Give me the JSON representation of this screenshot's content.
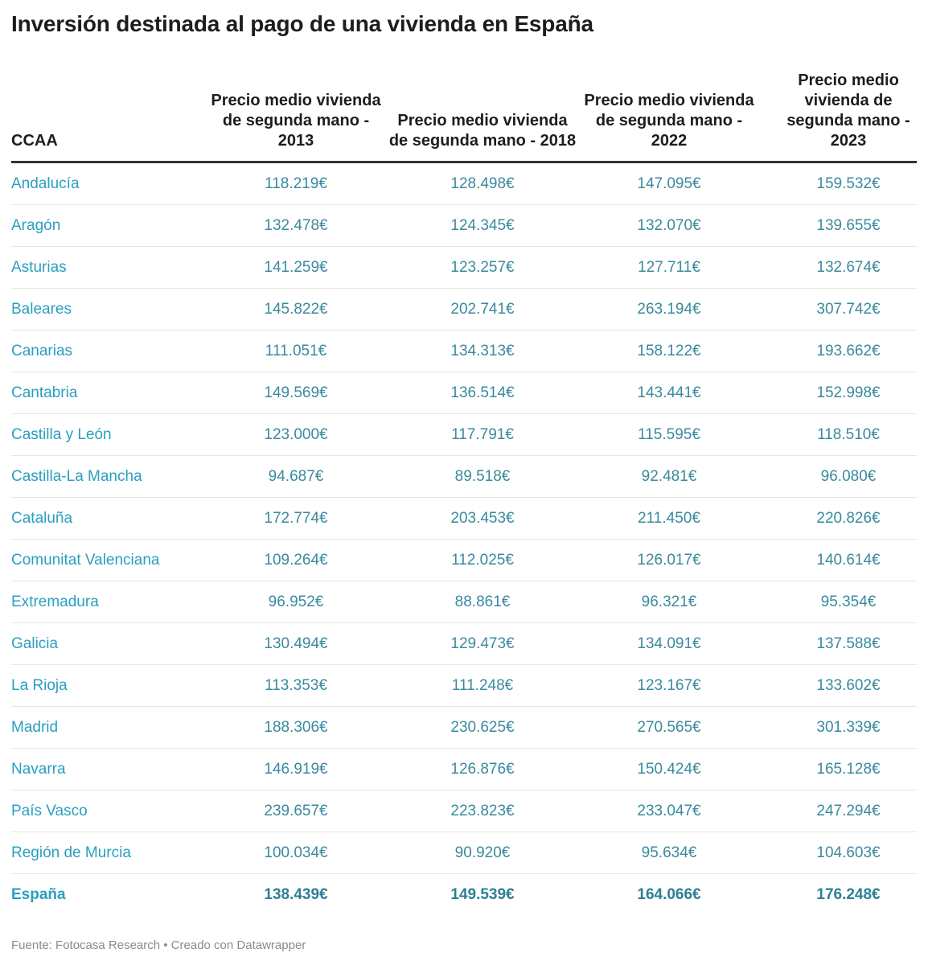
{
  "title": "Inversión destinada al pago de una vivienda en España",
  "footer": "Fuente: Fotocasa Research • Creado con Datawrapper",
  "colors": {
    "region_text": "#2a9fc0",
    "value_text": "#3a8a9e",
    "header_rule": "#333333"
  },
  "chart_data": {
    "type": "table",
    "title": "Inversión destinada al pago de una vivienda en España",
    "columns": [
      "CCAA",
      "Precio medio vivienda de segunda mano - 2013",
      "Precio medio vivienda de segunda mano - 2018",
      "Precio medio vivienda de segunda mano - 2022",
      "Precio medio vivienda de segunda mano - 2023"
    ],
    "rows": [
      [
        "Andalucía",
        "118.219€",
        "128.498€",
        "147.095€",
        "159.532€"
      ],
      [
        "Aragón",
        "132.478€",
        "124.345€",
        "132.070€",
        "139.655€"
      ],
      [
        "Asturias",
        "141.259€",
        "123.257€",
        "127.711€",
        "132.674€"
      ],
      [
        "Baleares",
        "145.822€",
        "202.741€",
        "263.194€",
        "307.742€"
      ],
      [
        "Canarias",
        "111.051€",
        "134.313€",
        "158.122€",
        "193.662€"
      ],
      [
        "Cantabria",
        "149.569€",
        "136.514€",
        "143.441€",
        "152.998€"
      ],
      [
        "Castilla y León",
        "123.000€",
        "117.791€",
        "115.595€",
        "118.510€"
      ],
      [
        "Castilla-La Mancha",
        "94.687€",
        "89.518€",
        "92.481€",
        "96.080€"
      ],
      [
        "Cataluña",
        "172.774€",
        "203.453€",
        "211.450€",
        "220.826€"
      ],
      [
        "Comunitat Valenciana",
        "109.264€",
        "112.025€",
        "126.017€",
        "140.614€"
      ],
      [
        "Extremadura",
        "96.952€",
        "88.861€",
        "96.321€",
        "95.354€"
      ],
      [
        "Galicia",
        "130.494€",
        "129.473€",
        "134.091€",
        "137.588€"
      ],
      [
        "La Rioja",
        "113.353€",
        "111.248€",
        "123.167€",
        "133.602€"
      ],
      [
        "Madrid",
        "188.306€",
        "230.625€",
        "270.565€",
        "301.339€"
      ],
      [
        "Navarra",
        "146.919€",
        "126.876€",
        "150.424€",
        "165.128€"
      ],
      [
        "País Vasco",
        "239.657€",
        "223.823€",
        "233.047€",
        "247.294€"
      ],
      [
        "Región de Murcia",
        "100.034€",
        "90.920€",
        "95.634€",
        "104.603€"
      ],
      [
        "España",
        "138.439€",
        "149.539€",
        "164.066€",
        "176.248€"
      ]
    ]
  }
}
